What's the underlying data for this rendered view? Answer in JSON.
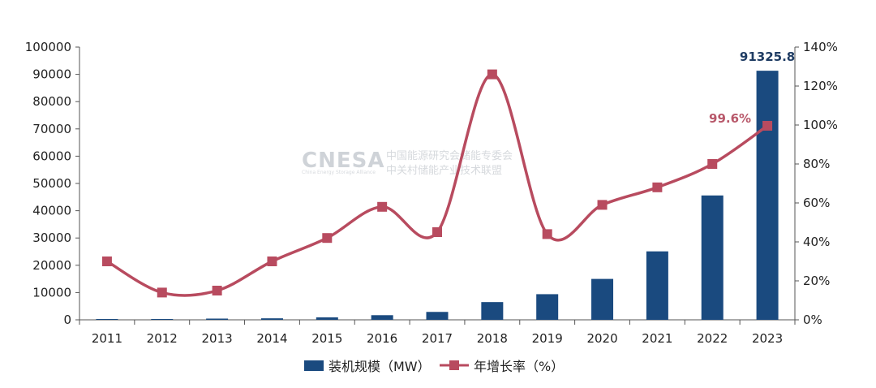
{
  "watermark": {
    "logo": "CNESA",
    "line1": "中国能源研究会储能专委会",
    "line2": "中关村储能产业技术联盟",
    "tagline": "China Energy Storage Alliance"
  },
  "chart_data": {
    "type": "bar+line",
    "categories": [
      "2011",
      "2012",
      "2013",
      "2014",
      "2015",
      "2016",
      "2017",
      "2018",
      "2019",
      "2020",
      "2021",
      "2022",
      "2023"
    ],
    "series": [
      {
        "name": "装机规模（MW）",
        "type": "bar",
        "axis": "left",
        "color": "#1a4a7f",
        "values": [
          200,
          300,
          450,
          550,
          900,
          1700,
          2900,
          6500,
          9400,
          15000,
          25100,
          45600,
          91325.8
        ]
      },
      {
        "name": "年增长率（%）",
        "type": "line",
        "axis": "right",
        "color": "#b84b5f",
        "values": [
          30,
          14,
          15,
          30,
          42,
          58,
          45,
          126,
          44,
          59,
          68,
          80,
          99.6
        ]
      }
    ],
    "y_left": {
      "min": 0,
      "max": 100000,
      "step": 10000
    },
    "y_right": {
      "min": 0,
      "max": 140,
      "step": 20,
      "unit": "%"
    },
    "annotations": [
      {
        "series": "bar",
        "index": 12,
        "text": "91325.8"
      },
      {
        "series": "line",
        "index": 12,
        "text": "99.6%"
      }
    ],
    "legend": {
      "position": "bottom"
    }
  }
}
